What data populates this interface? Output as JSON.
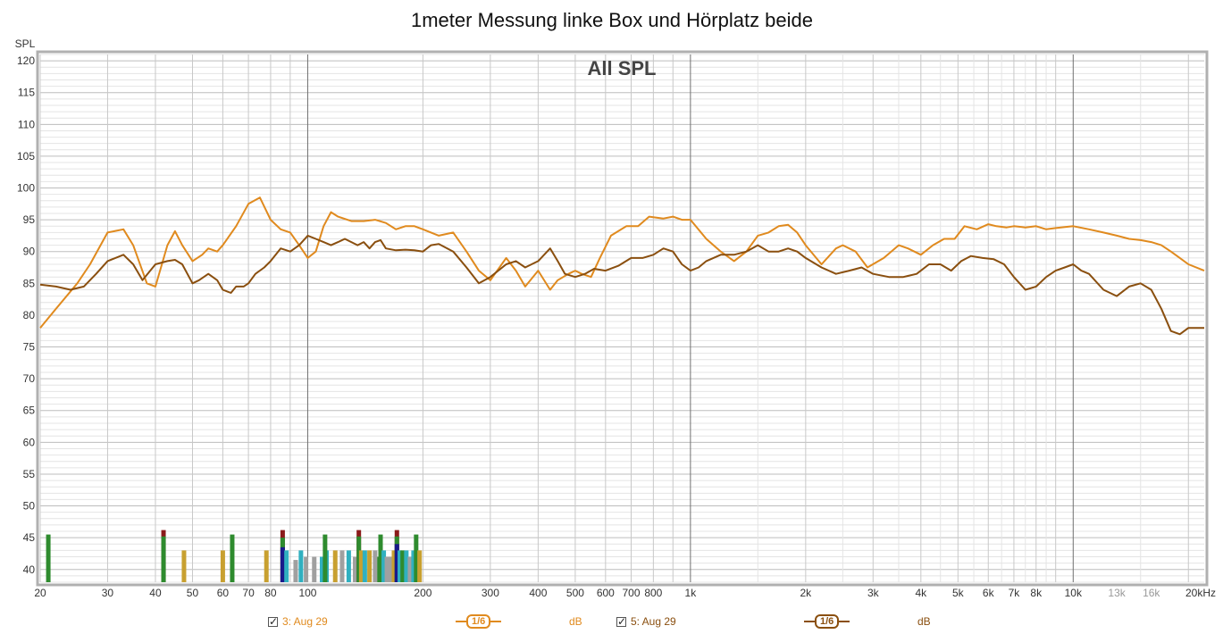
{
  "chart_data": {
    "type": "line",
    "title": "1meter Messung linke Box und Hörplatz beide",
    "annotation": "All SPL",
    "ylabel": "SPL",
    "xunit_label": "20kHz",
    "xscale": "log",
    "xlim": [
      20,
      22000
    ],
    "ylim": [
      38,
      121
    ],
    "y_ticks": [
      40,
      45,
      50,
      55,
      60,
      65,
      70,
      75,
      80,
      85,
      90,
      95,
      100,
      105,
      110,
      115,
      120
    ],
    "x_ticks": [
      {
        "v": 20,
        "label": "20"
      },
      {
        "v": 30,
        "label": "30"
      },
      {
        "v": 40,
        "label": "40"
      },
      {
        "v": 50,
        "label": "50"
      },
      {
        "v": 60,
        "label": "60"
      },
      {
        "v": 70,
        "label": "70"
      },
      {
        "v": 80,
        "label": "80"
      },
      {
        "v": 100,
        "label": "100"
      },
      {
        "v": 200,
        "label": "200"
      },
      {
        "v": 300,
        "label": "300"
      },
      {
        "v": 400,
        "label": "400"
      },
      {
        "v": 500,
        "label": "500"
      },
      {
        "v": 600,
        "label": "600"
      },
      {
        "v": 700,
        "label": "700"
      },
      {
        "v": 800,
        "label": "800"
      },
      {
        "v": 1000,
        "label": "1k"
      },
      {
        "v": 2000,
        "label": "2k"
      },
      {
        "v": 3000,
        "label": "3k"
      },
      {
        "v": 4000,
        "label": "4k"
      },
      {
        "v": 5000,
        "label": "5k"
      },
      {
        "v": 6000,
        "label": "6k"
      },
      {
        "v": 7000,
        "label": "7k"
      },
      {
        "v": 8000,
        "label": "8k"
      },
      {
        "v": 10000,
        "label": "10k"
      },
      {
        "v": 13000,
        "label": "13k"
      },
      {
        "v": 16000,
        "label": "16k"
      }
    ],
    "grid": true,
    "colors": {
      "series1": "#e08a1e",
      "series2": "#8a4f0f",
      "major_grid": "#808080",
      "minor_grid": "#d0d0d0",
      "frame": "#b0b0b0"
    },
    "series": [
      {
        "name": "3: Aug 29",
        "color": "#e08a1e",
        "points": [
          [
            20,
            78
          ],
          [
            22,
            81
          ],
          [
            25,
            85
          ],
          [
            27,
            88
          ],
          [
            30,
            93
          ],
          [
            33,
            93.5
          ],
          [
            35,
            91
          ],
          [
            38,
            85
          ],
          [
            40,
            84.5
          ],
          [
            43,
            91
          ],
          [
            45,
            93.2
          ],
          [
            47,
            91
          ],
          [
            50,
            88.5
          ],
          [
            53,
            89.5
          ],
          [
            55,
            90.5
          ],
          [
            58,
            90
          ],
          [
            60,
            91
          ],
          [
            65,
            94
          ],
          [
            70,
            97.5
          ],
          [
            75,
            98.5
          ],
          [
            80,
            95
          ],
          [
            85,
            93.5
          ],
          [
            90,
            93
          ],
          [
            95,
            91
          ],
          [
            100,
            89
          ],
          [
            105,
            90
          ],
          [
            110,
            94
          ],
          [
            115,
            96.2
          ],
          [
            120,
            95.5
          ],
          [
            130,
            94.8
          ],
          [
            140,
            94.8
          ],
          [
            150,
            95
          ],
          [
            160,
            94.5
          ],
          [
            170,
            93.5
          ],
          [
            180,
            94
          ],
          [
            190,
            94
          ],
          [
            200,
            93.5
          ],
          [
            220,
            92.5
          ],
          [
            240,
            93
          ],
          [
            260,
            90
          ],
          [
            280,
            87
          ],
          [
            300,
            85.5
          ],
          [
            330,
            89
          ],
          [
            350,
            87
          ],
          [
            370,
            84.5
          ],
          [
            400,
            87
          ],
          [
            430,
            84
          ],
          [
            450,
            85.5
          ],
          [
            480,
            86.5
          ],
          [
            500,
            87
          ],
          [
            520,
            86.5
          ],
          [
            550,
            86
          ],
          [
            580,
            89
          ],
          [
            620,
            92.5
          ],
          [
            680,
            94
          ],
          [
            730,
            94
          ],
          [
            780,
            95.5
          ],
          [
            850,
            95.2
          ],
          [
            900,
            95.5
          ],
          [
            950,
            95
          ],
          [
            1000,
            95
          ],
          [
            1100,
            92
          ],
          [
            1200,
            90
          ],
          [
            1300,
            88.5
          ],
          [
            1400,
            90
          ],
          [
            1500,
            92.5
          ],
          [
            1600,
            93
          ],
          [
            1700,
            94
          ],
          [
            1800,
            94.2
          ],
          [
            1900,
            93
          ],
          [
            2000,
            91
          ],
          [
            2200,
            88
          ],
          [
            2400,
            90.5
          ],
          [
            2500,
            91
          ],
          [
            2700,
            90
          ],
          [
            2900,
            87.5
          ],
          [
            3200,
            89
          ],
          [
            3500,
            91
          ],
          [
            3700,
            90.5
          ],
          [
            4000,
            89.5
          ],
          [
            4300,
            91
          ],
          [
            4600,
            92
          ],
          [
            4900,
            92
          ],
          [
            5200,
            94
          ],
          [
            5600,
            93.5
          ],
          [
            6000,
            94.3
          ],
          [
            6300,
            94
          ],
          [
            6700,
            93.8
          ],
          [
            7000,
            94
          ],
          [
            7500,
            93.8
          ],
          [
            8000,
            94
          ],
          [
            8500,
            93.5
          ],
          [
            9000,
            93.7
          ],
          [
            10000,
            94
          ],
          [
            11000,
            93.5
          ],
          [
            12000,
            93
          ],
          [
            13000,
            92.5
          ],
          [
            14000,
            92
          ],
          [
            15000,
            91.8
          ],
          [
            16000,
            91.5
          ],
          [
            17000,
            91
          ],
          [
            18000,
            90
          ],
          [
            19000,
            89
          ],
          [
            20000,
            88
          ],
          [
            22000,
            87
          ]
        ]
      },
      {
        "name": "5: Aug 29",
        "color": "#8a4f0f",
        "points": [
          [
            20,
            84.8
          ],
          [
            22,
            84.5
          ],
          [
            24,
            84
          ],
          [
            26,
            84.5
          ],
          [
            28,
            86.5
          ],
          [
            30,
            88.5
          ],
          [
            33,
            89.5
          ],
          [
            35,
            88
          ],
          [
            37,
            85.5
          ],
          [
            40,
            88
          ],
          [
            43,
            88.5
          ],
          [
            45,
            88.7
          ],
          [
            47,
            88
          ],
          [
            50,
            85
          ],
          [
            52,
            85.5
          ],
          [
            55,
            86.5
          ],
          [
            58,
            85.5
          ],
          [
            60,
            84
          ],
          [
            63,
            83.5
          ],
          [
            65,
            84.5
          ],
          [
            68,
            84.5
          ],
          [
            70,
            85
          ],
          [
            73,
            86.5
          ],
          [
            77,
            87.5
          ],
          [
            80,
            88.5
          ],
          [
            85,
            90.5
          ],
          [
            90,
            90
          ],
          [
            95,
            91
          ],
          [
            100,
            92.5
          ],
          [
            105,
            92
          ],
          [
            110,
            91.5
          ],
          [
            115,
            91
          ],
          [
            120,
            91.5
          ],
          [
            125,
            92
          ],
          [
            130,
            91.5
          ],
          [
            135,
            91
          ],
          [
            140,
            91.5
          ],
          [
            145,
            90.5
          ],
          [
            150,
            91.5
          ],
          [
            155,
            91.8
          ],
          [
            160,
            90.5
          ],
          [
            170,
            90.2
          ],
          [
            180,
            90.3
          ],
          [
            190,
            90.2
          ],
          [
            200,
            90
          ],
          [
            210,
            91
          ],
          [
            220,
            91.2
          ],
          [
            240,
            90
          ],
          [
            260,
            87.5
          ],
          [
            280,
            85
          ],
          [
            300,
            86
          ],
          [
            330,
            88
          ],
          [
            350,
            88.5
          ],
          [
            370,
            87.5
          ],
          [
            400,
            88.5
          ],
          [
            430,
            90.5
          ],
          [
            450,
            88.5
          ],
          [
            470,
            86.5
          ],
          [
            500,
            86
          ],
          [
            530,
            86.5
          ],
          [
            560,
            87.3
          ],
          [
            600,
            87
          ],
          [
            650,
            87.8
          ],
          [
            700,
            89
          ],
          [
            750,
            89
          ],
          [
            800,
            89.5
          ],
          [
            850,
            90.5
          ],
          [
            900,
            90
          ],
          [
            950,
            88
          ],
          [
            1000,
            87
          ],
          [
            1050,
            87.5
          ],
          [
            1100,
            88.5
          ],
          [
            1200,
            89.5
          ],
          [
            1300,
            89.5
          ],
          [
            1400,
            90
          ],
          [
            1500,
            91
          ],
          [
            1600,
            90
          ],
          [
            1700,
            90
          ],
          [
            1800,
            90.5
          ],
          [
            1900,
            90
          ],
          [
            2000,
            89
          ],
          [
            2200,
            87.5
          ],
          [
            2400,
            86.5
          ],
          [
            2600,
            87
          ],
          [
            2800,
            87.5
          ],
          [
            3000,
            86.5
          ],
          [
            3300,
            86
          ],
          [
            3600,
            86
          ],
          [
            3900,
            86.5
          ],
          [
            4200,
            88
          ],
          [
            4500,
            88
          ],
          [
            4800,
            87
          ],
          [
            5100,
            88.5
          ],
          [
            5400,
            89.3
          ],
          [
            5800,
            89
          ],
          [
            6200,
            88.8
          ],
          [
            6600,
            88
          ],
          [
            7000,
            86
          ],
          [
            7500,
            84
          ],
          [
            8000,
            84.5
          ],
          [
            8500,
            86
          ],
          [
            9000,
            87
          ],
          [
            9500,
            87.5
          ],
          [
            10000,
            88
          ],
          [
            10500,
            87
          ],
          [
            11000,
            86.5
          ],
          [
            12000,
            84
          ],
          [
            13000,
            83
          ],
          [
            14000,
            84.5
          ],
          [
            15000,
            85
          ],
          [
            16000,
            84
          ],
          [
            17000,
            81
          ],
          [
            18000,
            77.5
          ],
          [
            19000,
            77
          ],
          [
            20000,
            78
          ],
          [
            22000,
            78
          ]
        ]
      }
    ],
    "bars": [
      {
        "f": 21,
        "h": 45.5,
        "c": "#2e8b2e"
      },
      {
        "f": 42,
        "h": 46.2,
        "c": "#8b1a1a"
      },
      {
        "f": 42,
        "h": 45.2,
        "c": "#2e8b2e"
      },
      {
        "f": 47.5,
        "h": 43,
        "c": "#c8a030"
      },
      {
        "f": 60,
        "h": 43,
        "c": "#c8a030"
      },
      {
        "f": 63.5,
        "h": 45.5,
        "c": "#2e8b2e"
      },
      {
        "f": 78,
        "h": 43,
        "c": "#c8a030"
      },
      {
        "f": 86,
        "h": 46.2,
        "c": "#8b1a1a"
      },
      {
        "f": 86,
        "h": 45,
        "c": "#2e8b2e"
      },
      {
        "f": 86,
        "h": 43.5,
        "c": "#1a1a8b"
      },
      {
        "f": 88,
        "h": 43,
        "c": "#30b0c0"
      },
      {
        "f": 93,
        "h": 41.5,
        "c": "#a0a0a0"
      },
      {
        "f": 96,
        "h": 43,
        "c": "#30b0c0"
      },
      {
        "f": 99,
        "h": 42,
        "c": "#a0a0a0"
      },
      {
        "f": 104,
        "h": 42,
        "c": "#a0a0a0"
      },
      {
        "f": 109,
        "h": 42,
        "c": "#30b0c0"
      },
      {
        "f": 112,
        "h": 43,
        "c": "#30b0c0"
      },
      {
        "f": 111,
        "h": 45.5,
        "c": "#2e8b2e"
      },
      {
        "f": 118,
        "h": 43,
        "c": "#c8a030"
      },
      {
        "f": 123,
        "h": 43,
        "c": "#a0a0a0"
      },
      {
        "f": 128,
        "h": 43,
        "c": "#30b0c0"
      },
      {
        "f": 133,
        "h": 42,
        "c": "#a0a0a0"
      },
      {
        "f": 136,
        "h": 46.2,
        "c": "#8b1a1a"
      },
      {
        "f": 136,
        "h": 45.2,
        "c": "#2e8b2e"
      },
      {
        "f": 138,
        "h": 43,
        "c": "#c8a030"
      },
      {
        "f": 141,
        "h": 43,
        "c": "#30b0c0"
      },
      {
        "f": 145,
        "h": 43,
        "c": "#c8a030"
      },
      {
        "f": 150,
        "h": 43,
        "c": "#a0a0a0"
      },
      {
        "f": 154,
        "h": 42,
        "c": "#2e8b2e"
      },
      {
        "f": 155,
        "h": 45.5,
        "c": "#2e8b2e"
      },
      {
        "f": 158,
        "h": 43,
        "c": "#30b0c0"
      },
      {
        "f": 161,
        "h": 42,
        "c": "#a0a0a0"
      },
      {
        "f": 165,
        "h": 42,
        "c": "#a0a0a0"
      },
      {
        "f": 168,
        "h": 43,
        "c": "#c8a030"
      },
      {
        "f": 171,
        "h": 46.2,
        "c": "#8b1a1a"
      },
      {
        "f": 171,
        "h": 45.2,
        "c": "#2e8b2e"
      },
      {
        "f": 171,
        "h": 44,
        "c": "#1a1a8b"
      },
      {
        "f": 174,
        "h": 43,
        "c": "#30b0c0"
      },
      {
        "f": 177,
        "h": 43,
        "c": "#2e8b2e"
      },
      {
        "f": 181,
        "h": 43,
        "c": "#30b0c0"
      },
      {
        "f": 185,
        "h": 42,
        "c": "#a0a0a0"
      },
      {
        "f": 189,
        "h": 43,
        "c": "#30b0c0"
      },
      {
        "f": 192,
        "h": 45.5,
        "c": "#2e8b2e"
      },
      {
        "f": 196,
        "h": 43,
        "c": "#c8a030"
      }
    ]
  },
  "legend": [
    {
      "label": "3: Aug 29",
      "smoothing": "1/6",
      "unit": "dB",
      "color": "#e08a1e"
    },
    {
      "label": "5: Aug 29",
      "smoothing": "1/6",
      "unit": "dB",
      "color": "#8a4f0f"
    }
  ]
}
